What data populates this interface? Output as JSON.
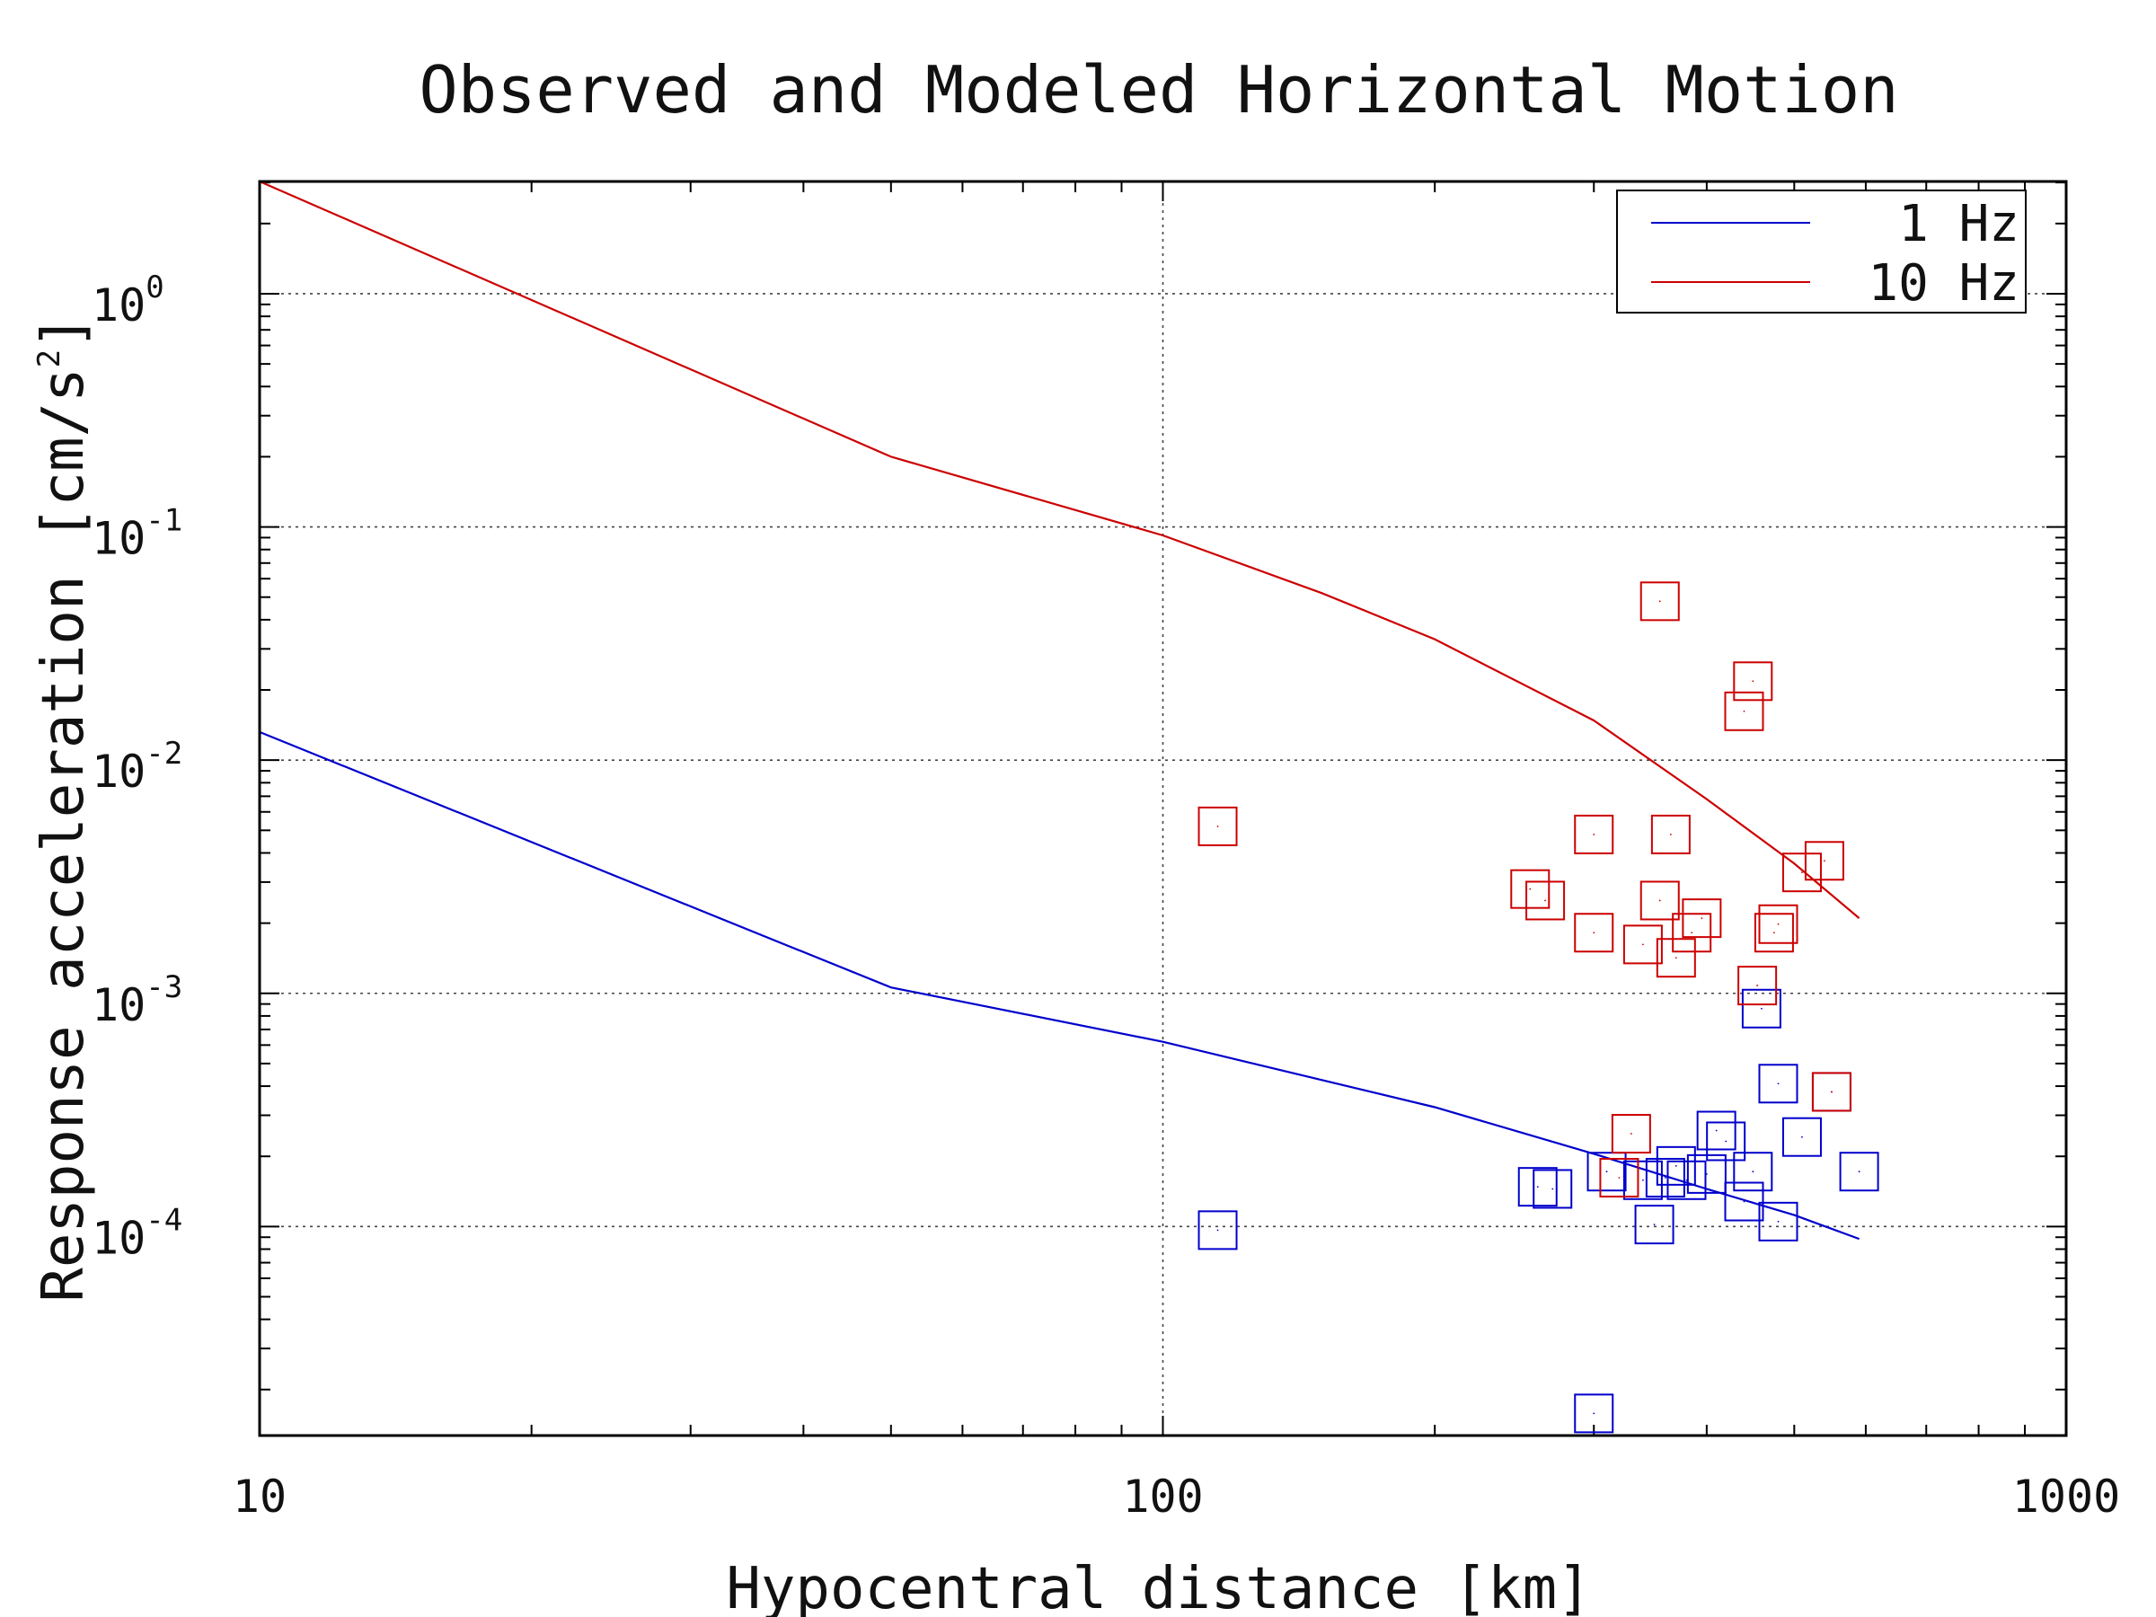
{
  "chart_data": {
    "type": "scatter",
    "title": "Observed and Modeled Horizontal Motion",
    "xlabel": "Hypocentral distance [km]",
    "ylabel": "Response acceleration [cm/s^2]",
    "ylabel_text": "Response acceleration [cm/s",
    "ylabel_sup": "2",
    "ylabel_close": "]",
    "xscale": "log",
    "yscale": "log",
    "xlim": [
      10,
      1000
    ],
    "ylim": [
      1.27e-05,
      3.03
    ],
    "grid": true,
    "legend_position": "top-right",
    "x_ticks": [
      {
        "value": 10,
        "label": "10"
      },
      {
        "value": 100,
        "label": "100"
      },
      {
        "value": 1000,
        "label": "1000"
      }
    ],
    "y_ticks": [
      {
        "value": 1,
        "base": "10",
        "exp": "0"
      },
      {
        "value": 0.1,
        "base": "10",
        "exp": "-1"
      },
      {
        "value": 0.01,
        "base": "10",
        "exp": "-2"
      },
      {
        "value": 0.001,
        "base": "10",
        "exp": "-3"
      },
      {
        "value": 0.0001,
        "base": "10",
        "exp": "-4"
      }
    ],
    "series": [
      {
        "name": "1 Hz",
        "color": "#0000cc",
        "line": [
          [
            10,
            0.0132
          ],
          [
            50,
            0.00106
          ],
          [
            100,
            0.00062
          ],
          [
            200,
            0.000325
          ],
          [
            300,
            0.000205
          ],
          [
            400,
            0.000145
          ],
          [
            500,
            0.000112
          ],
          [
            590,
            8.85e-05
          ]
        ],
        "points": [
          [
            115,
            9.65e-05
          ],
          [
            300,
            1.58e-05
          ],
          [
            260,
            0.000148
          ],
          [
            270,
            0.000145
          ],
          [
            310,
            0.000172
          ],
          [
            340,
            0.000158
          ],
          [
            350,
            0.000102
          ],
          [
            360,
            0.000162
          ],
          [
            370,
            0.000182
          ],
          [
            380,
            0.000158
          ],
          [
            400,
            0.000168
          ],
          [
            410,
            0.000258
          ],
          [
            420,
            0.000232
          ],
          [
            440,
            0.000128
          ],
          [
            450,
            0.000172
          ],
          [
            460,
            0.00086
          ],
          [
            480,
            0.000105
          ],
          [
            480,
            0.00041
          ],
          [
            510,
            0.000242
          ],
          [
            550,
            0.000378
          ],
          [
            590,
            0.000172
          ]
        ]
      },
      {
        "name": "10 Hz",
        "color": "#cc0000",
        "line": [
          [
            10,
            3.03
          ],
          [
            50,
            0.2
          ],
          [
            100,
            0.092
          ],
          [
            150,
            0.052
          ],
          [
            200,
            0.033
          ],
          [
            300,
            0.0148
          ],
          [
            400,
            0.0068
          ],
          [
            500,
            0.0036
          ],
          [
            590,
            0.0021
          ]
        ],
        "points": [
          [
            115,
            0.0052
          ],
          [
            255,
            0.0028
          ],
          [
            265,
            0.0025
          ],
          [
            300,
            0.0048
          ],
          [
            300,
            0.00182
          ],
          [
            320,
            0.000162
          ],
          [
            330,
            0.00025
          ],
          [
            340,
            0.00162
          ],
          [
            355,
            0.048
          ],
          [
            355,
            0.0025
          ],
          [
            365,
            0.0048
          ],
          [
            370,
            0.00142
          ],
          [
            385,
            0.00182
          ],
          [
            395,
            0.0021
          ],
          [
            440,
            0.0162
          ],
          [
            450,
            0.0218
          ],
          [
            455,
            0.00108
          ],
          [
            475,
            0.00182
          ],
          [
            480,
            0.00198
          ],
          [
            510,
            0.0033
          ],
          [
            540,
            0.0037
          ],
          [
            550,
            0.000378
          ]
        ]
      }
    ]
  }
}
